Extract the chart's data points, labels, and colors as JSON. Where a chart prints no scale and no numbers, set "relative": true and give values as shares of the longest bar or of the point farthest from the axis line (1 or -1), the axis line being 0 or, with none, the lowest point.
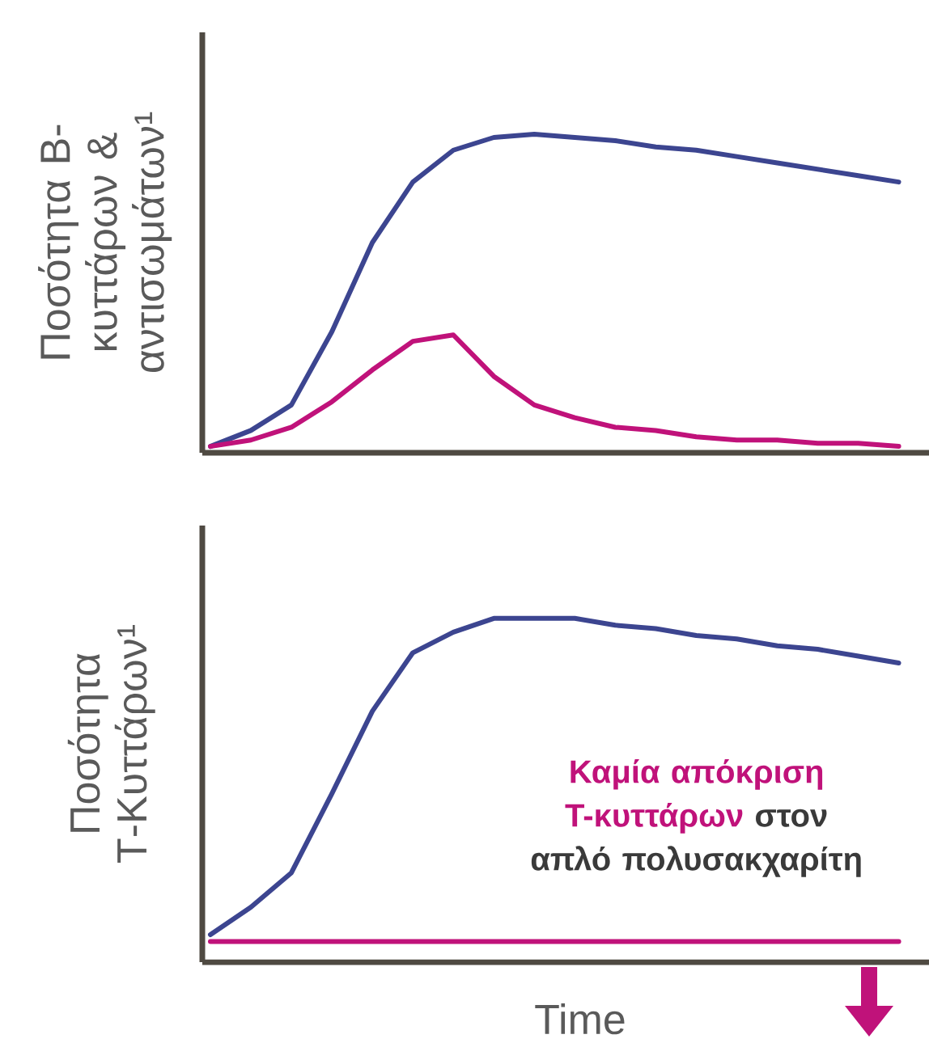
{
  "chart_data": [
    {
      "type": "line",
      "relative": true,
      "ylabel": "Ποσότητα Β-κυττάρων & αντισωμάτων¹",
      "categories": [
        null,
        null,
        null,
        null,
        null,
        null,
        null,
        null,
        null,
        null,
        null,
        null,
        null,
        null,
        null,
        null,
        null,
        null
      ],
      "series": [
        {
          "color": "#3c4590",
          "values": [
            0.02,
            0.07,
            0.15,
            0.38,
            0.66,
            0.85,
            0.95,
            0.99,
            1.0,
            0.99,
            0.98,
            0.96,
            0.95,
            0.93,
            0.91,
            0.89,
            0.87,
            0.85
          ]
        },
        {
          "color": "#c0127a",
          "values": [
            0.02,
            0.04,
            0.08,
            0.16,
            0.26,
            0.35,
            0.37,
            0.24,
            0.15,
            0.11,
            0.08,
            0.07,
            0.05,
            0.04,
            0.04,
            0.03,
            0.03,
            0.02
          ]
        }
      ]
    },
    {
      "type": "line",
      "relative": true,
      "ylabel": "Ποσότητα Τ-Κυττάρων¹",
      "xlabel": "Time",
      "annotations": [
        "Καμία απόκριση Τ-κυττάρων",
        "στον απλό πολυσακχαρίτη"
      ],
      "categories": [
        null,
        null,
        null,
        null,
        null,
        null,
        null,
        null,
        null,
        null,
        null,
        null,
        null,
        null,
        null,
        null,
        null,
        null
      ],
      "series": [
        {
          "color": "#3c4590",
          "values": [
            0.08,
            0.16,
            0.26,
            0.49,
            0.73,
            0.9,
            0.96,
            1.0,
            1.0,
            1.0,
            0.98,
            0.97,
            0.95,
            0.94,
            0.92,
            0.91,
            0.89,
            0.87
          ]
        },
        {
          "color": "#c0127a",
          "values": [
            0.06,
            0.06,
            0.06,
            0.06,
            0.06,
            0.06,
            0.06,
            0.06,
            0.06,
            0.06,
            0.06,
            0.06,
            0.06,
            0.06,
            0.06,
            0.06,
            0.06,
            0.06
          ]
        }
      ]
    }
  ]
}
